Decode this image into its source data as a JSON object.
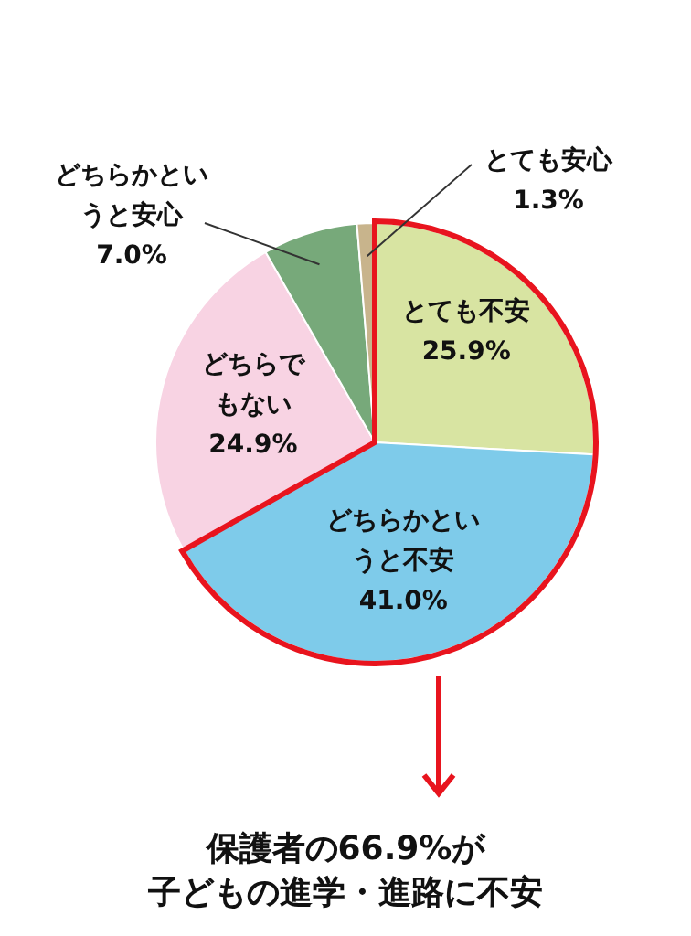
{
  "chart_data": {
    "type": "pie",
    "categories": [
      "とても不安",
      "どちらかというと不安",
      "どちらでもない",
      "どちらかというと安心",
      "とても安心"
    ],
    "values": [
      25.9,
      41.0,
      24.9,
      7.0,
      1.3
    ],
    "value_labels": [
      "25.9%",
      "41.0%",
      "24.9%",
      "7.0%",
      "1.3%"
    ],
    "colors": [
      "#d8e4a2",
      "#7ecbea",
      "#f8d3e3",
      "#77a97a",
      "#c8b48c"
    ],
    "annotations": [
      "保護者の66.9%が子どもの進学・進路に不安"
    ]
  }
}
